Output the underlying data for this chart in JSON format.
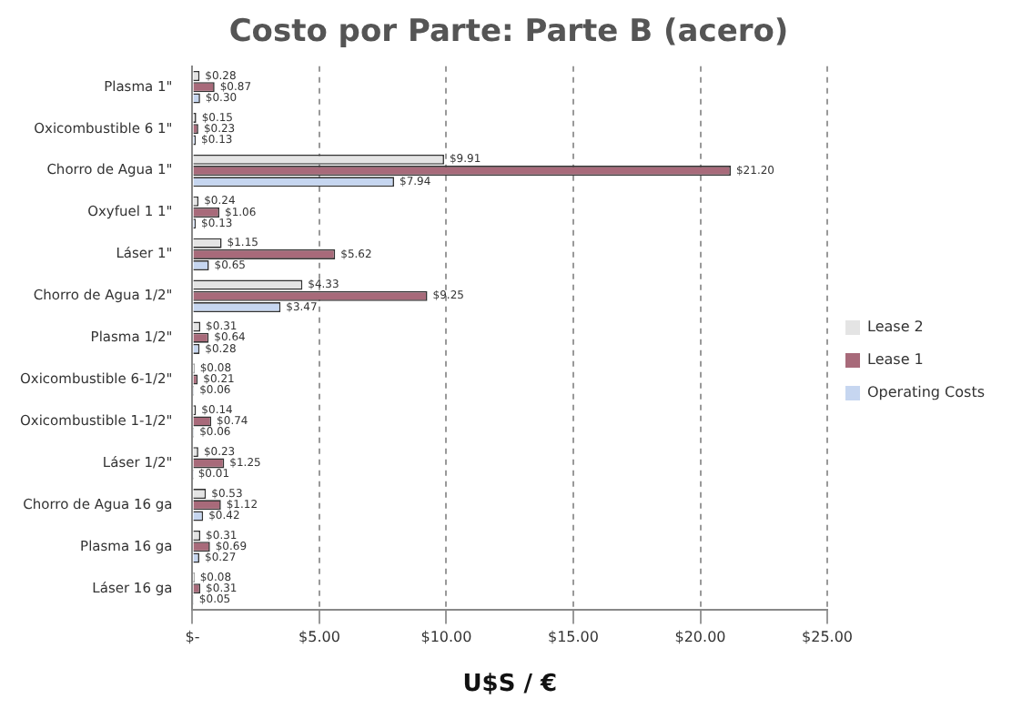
{
  "chart_data": {
    "type": "bar",
    "orientation": "horizontal",
    "title": "Costo por Parte: Parte B (acero)",
    "xlabel": "U$S / €",
    "categories": [
      "Plasma 1\"",
      "Oxicombustible 6 1\"",
      "Chorro de Agua 1\"",
      "Oxyfuel 1 1\"",
      "Láser 1\"",
      "Chorro de Agua 1/2\"",
      "Plasma 1/2\"",
      "Oxicombustible 6-1/2\"",
      "Oxicombustible 1-1/2\"",
      "Láser 1/2\"",
      "Chorro de Agua 16 ga",
      "Plasma 16 ga",
      "Láser 16 ga"
    ],
    "series": [
      {
        "name": "Lease 2",
        "color": "#e4e4e4",
        "values": [
          0.28,
          0.15,
          9.91,
          0.24,
          1.15,
          4.33,
          0.31,
          0.08,
          0.14,
          0.23,
          0.53,
          0.31,
          0.08
        ],
        "value_labels": [
          "$0.28",
          "$0.15",
          "$9.91",
          "$0.24",
          "$1.15",
          "$4.33",
          "$0.31",
          "$0.08",
          "$0.14",
          "$0.23",
          "$0.53",
          "$0.31",
          "$0.08"
        ]
      },
      {
        "name": "Lease 1",
        "color": "#a86a7a",
        "values": [
          0.87,
          0.23,
          21.2,
          1.06,
          5.62,
          9.25,
          0.64,
          0.21,
          0.74,
          1.25,
          1.12,
          0.69,
          0.31
        ],
        "value_labels": [
          "$0.87",
          "$0.23",
          "$21.20",
          "$1.06",
          "$5.62",
          "$9.25",
          "$0.64",
          "$0.21",
          "$0.74",
          "$1.25",
          "$1.12",
          "$0.69",
          "$0.31"
        ]
      },
      {
        "name": "Operating Costs",
        "color": "#c6d6f0",
        "values": [
          0.3,
          0.13,
          7.94,
          0.13,
          0.65,
          3.47,
          0.28,
          0.06,
          0.06,
          0.01,
          0.42,
          0.27,
          0.05
        ],
        "value_labels": [
          "$0.30",
          "$0.13",
          "$7.94",
          "$0.13",
          "$0.65",
          "$3.47",
          "$0.28",
          "$0.06",
          "$0.06",
          "$0.01",
          "$0.42",
          "$0.27",
          "$0.05"
        ]
      }
    ],
    "xlim": [
      0,
      25
    ],
    "xticks": [
      {
        "value": 0,
        "label": "$-"
      },
      {
        "value": 5,
        "label": "$5.00"
      },
      {
        "value": 10,
        "label": "$10.00"
      },
      {
        "value": 15,
        "label": "$15.00"
      },
      {
        "value": 20,
        "label": "$20.00"
      },
      {
        "value": 25,
        "label": "$25.00"
      }
    ],
    "grid": "x",
    "legend": "right"
  }
}
